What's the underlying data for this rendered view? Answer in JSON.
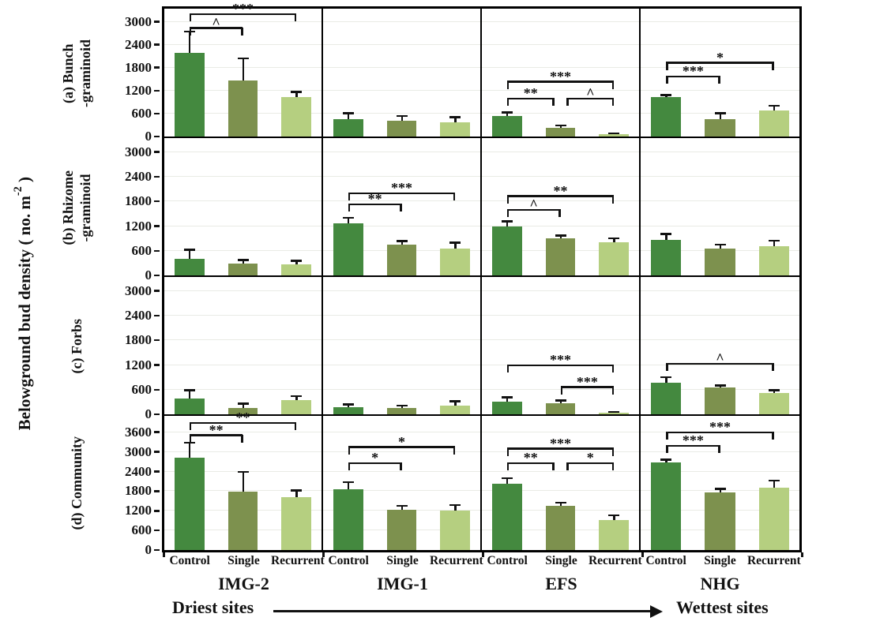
{
  "y_axis_label": {
    "prefix": "Belowground bud density ( no. m",
    "sup": "-2",
    "suffix": " )"
  },
  "footer": {
    "left": "Driest sites",
    "right": "Wettest sites"
  },
  "colors": {
    "bars": [
      "#44893F",
      "#7D914E",
      "#B5CF80"
    ],
    "error": "#111111",
    "grid": "#E9EBE5",
    "border": "#000000"
  },
  "chart_data": {
    "type": "bar",
    "title": "",
    "ylabel": "Belowground bud density ( no. m-2 )",
    "treatments": [
      "Control",
      "Single",
      "Recurrent"
    ],
    "sites": [
      "IMG-2",
      "IMG-1",
      "EFS",
      "NHG"
    ],
    "site_gradient": {
      "left": "Driest sites",
      "right": "Wettest sites"
    },
    "legend": "none",
    "grid_on": true,
    "rows": [
      {
        "id": "a",
        "label_lines": [
          "(a) Bunch",
          "-graminoid"
        ],
        "ylim": [
          0,
          3340
        ],
        "yticks": [
          0,
          600,
          1200,
          1800,
          2400,
          3000
        ],
        "panels": [
          {
            "site": "IMG-2",
            "values": [
              2190,
              1455,
              1030
            ],
            "errors": [
              570,
              600,
              155
            ],
            "sig": [
              {
                "from": 0,
                "to": 2,
                "label": "***",
                "h": 95
              },
              {
                "from": 0,
                "to": 1,
                "label": "^",
                "h": 84
              }
            ]
          },
          {
            "site": "IMG-1",
            "values": [
              450,
              420,
              380
            ],
            "errors": [
              170,
              130,
              140
            ],
            "sig": []
          },
          {
            "site": "EFS",
            "values": [
              540,
              230,
              70
            ],
            "errors": [
              100,
              70,
              30
            ],
            "sig": [
              {
                "from": 0,
                "to": 2,
                "label": "***",
                "h": 42
              },
              {
                "from": 0,
                "to": 1,
                "label": "**",
                "h": 29,
                "dx2": -4
              },
              {
                "from": 1,
                "to": 2,
                "label": "^",
                "h": 29,
                "dx1": 4
              }
            ]
          },
          {
            "site": "NHG",
            "values": [
              1030,
              460,
              680
            ],
            "errors": [
              70,
              160,
              140
            ],
            "sig": [
              {
                "from": 0,
                "to": 2,
                "label": "*",
                "h": 57
              },
              {
                "from": 0,
                "to": 1,
                "label": "***",
                "h": 46
              }
            ]
          }
        ]
      },
      {
        "id": "b",
        "label_lines": [
          "(b) Rhizome",
          "-graminoid"
        ],
        "ylim": [
          0,
          3340
        ],
        "yticks": [
          0,
          600,
          1200,
          1800,
          2400,
          3000
        ],
        "panels": [
          {
            "site": "IMG-2",
            "values": [
              410,
              290,
              270
            ],
            "errors": [
              230,
              100,
              100
            ],
            "sig": []
          },
          {
            "site": "IMG-1",
            "values": [
              1260,
              750,
              660
            ],
            "errors": [
              160,
              95,
              155
            ],
            "sig": [
              {
                "from": 0,
                "to": 2,
                "label": "***",
                "h": 59
              },
              {
                "from": 0,
                "to": 1,
                "label": "**",
                "h": 51
              }
            ]
          },
          {
            "site": "EFS",
            "values": [
              1190,
              910,
              815
            ],
            "errors": [
              135,
              70,
              105
            ],
            "sig": [
              {
                "from": 0,
                "to": 2,
                "label": "**",
                "h": 57
              },
              {
                "from": 0,
                "to": 1,
                "label": "^",
                "h": 47
              }
            ]
          },
          {
            "site": "NHG",
            "values": [
              870,
              650,
              715
            ],
            "errors": [
              155,
              115,
              145
            ],
            "sig": []
          }
        ]
      },
      {
        "id": "c",
        "label_lines": [
          "(c) Forbs"
        ],
        "ylim": [
          0,
          3340
        ],
        "yticks": [
          0,
          600,
          1200,
          1800,
          2400,
          3000
        ],
        "panels": [
          {
            "site": "IMG-2",
            "values": [
              390,
              150,
              350
            ],
            "errors": [
              210,
              120,
              110
            ],
            "sig": []
          },
          {
            "site": "IMG-1",
            "values": [
              180,
              160,
              220
            ],
            "errors": [
              75,
              70,
              115
            ],
            "sig": []
          },
          {
            "site": "EFS",
            "values": [
              315,
              260,
              40
            ],
            "errors": [
              115,
              95,
              30
            ],
            "sig": [
              {
                "from": 0,
                "to": 2,
                "label": "***",
                "h": 35
              },
              {
                "from": 1,
                "to": 2,
                "label": "***",
                "h": 19
              }
            ]
          },
          {
            "site": "NHG",
            "values": [
              760,
              650,
              520
            ],
            "errors": [
              160,
              70,
              80
            ],
            "sig": [
              {
                "from": 0,
                "to": 2,
                "label": "^",
                "h": 36
              }
            ]
          }
        ]
      },
      {
        "id": "d",
        "label_lines": [
          "(d) Community"
        ],
        "ylim": [
          0,
          4100
        ],
        "yticks": [
          0,
          600,
          1200,
          1800,
          2400,
          3000,
          3600
        ],
        "panels": [
          {
            "site": "IMG-2",
            "values": [
              2830,
              1790,
              1610
            ],
            "errors": [
              470,
              620,
              230
            ],
            "sig": [
              {
                "from": 0,
                "to": 2,
                "label": "**",
                "h": 94
              },
              {
                "from": 0,
                "to": 1,
                "label": "**",
                "h": 85
              }
            ]
          },
          {
            "site": "IMG-1",
            "values": [
              1860,
              1240,
              1200
            ],
            "errors": [
              230,
              130,
              195
            ],
            "sig": [
              {
                "from": 0,
                "to": 2,
                "label": "*",
                "h": 76
              },
              {
                "from": 0,
                "to": 1,
                "label": "*",
                "h": 64
              }
            ]
          },
          {
            "site": "EFS",
            "values": [
              2020,
              1340,
              915
            ],
            "errors": [
              190,
              130,
              170
            ],
            "sig": [
              {
                "from": 0,
                "to": 2,
                "label": "***",
                "h": 75
              },
              {
                "from": 0,
                "to": 1,
                "label": "**",
                "h": 64,
                "dx2": -4
              },
              {
                "from": 1,
                "to": 2,
                "label": "*",
                "h": 64,
                "dx1": 4
              }
            ]
          },
          {
            "site": "NHG",
            "values": [
              2670,
              1770,
              1900
            ],
            "errors": [
              110,
              115,
              235
            ],
            "sig": [
              {
                "from": 0,
                "to": 2,
                "label": "***",
                "h": 87
              },
              {
                "from": 0,
                "to": 1,
                "label": "***",
                "h": 77
              }
            ]
          }
        ]
      }
    ]
  }
}
